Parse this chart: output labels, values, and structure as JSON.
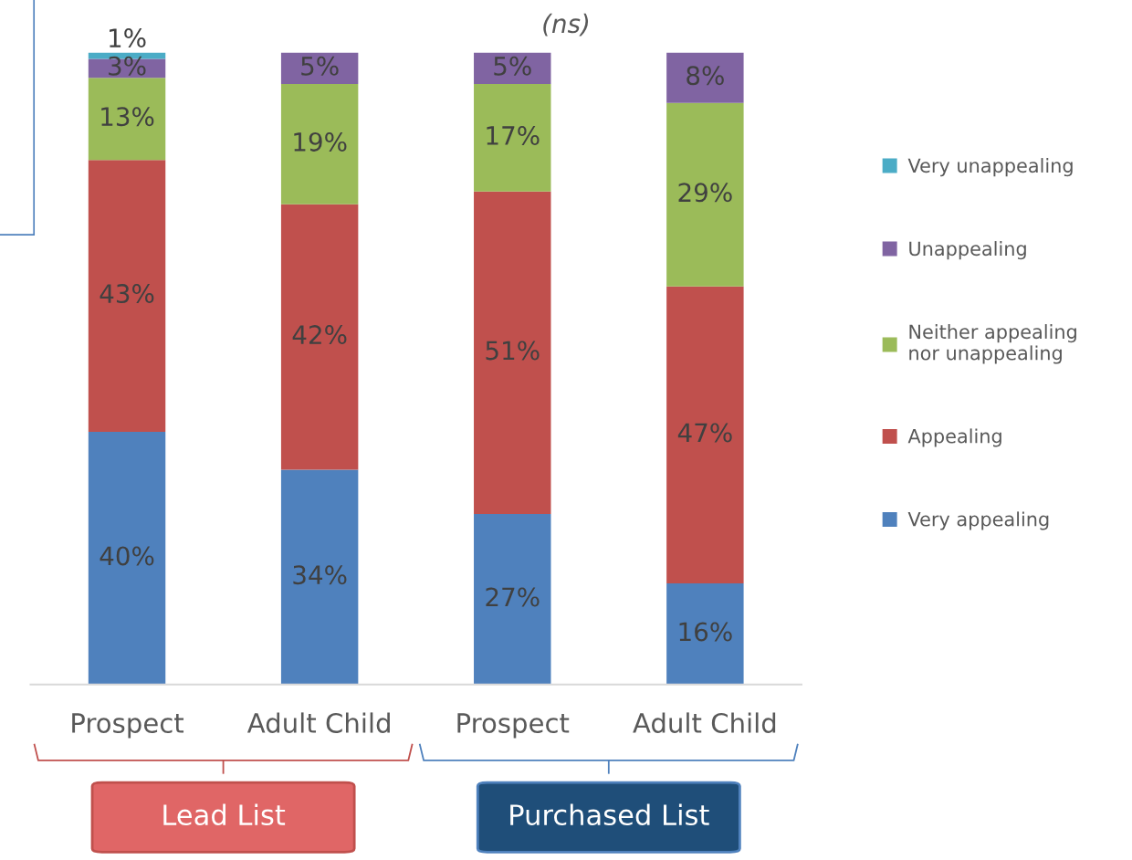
{
  "chart_data": {
    "type": "bar",
    "stacked": true,
    "subtitle": "(ns)",
    "categories": [
      "Prospect",
      "Adult Child",
      "Prospect",
      "Adult Child"
    ],
    "series": [
      {
        "name": "Very appealing",
        "color": "#4f81bd",
        "values": [
          40,
          34,
          27,
          16
        ],
        "value_labels": [
          "40%",
          "34%",
          "27%",
          "16%"
        ]
      },
      {
        "name": "Appealing",
        "color": "#c0504d",
        "values": [
          43,
          42,
          51,
          47
        ],
        "value_labels": [
          "43%",
          "42%",
          "51%",
          "47%"
        ]
      },
      {
        "name": "Neither appealing\nnor unappealing",
        "color": "#9bbb59",
        "values": [
          13,
          19,
          17,
          29
        ],
        "value_labels": [
          "13%",
          "19%",
          "17%",
          "29%"
        ]
      },
      {
        "name": "Unappealing",
        "color": "#8064a2",
        "values": [
          3,
          5,
          5,
          8
        ],
        "value_labels": [
          "3%",
          "5%",
          "5%",
          "8%"
        ]
      },
      {
        "name": "Very unappealing",
        "color": "#4bacc6",
        "values": [
          1,
          null,
          null,
          null
        ],
        "value_labels": [
          "1%",
          null,
          null,
          null
        ]
      }
    ],
    "annotations": [
      "Lead List",
      "Purchased List"
    ],
    "legend": "right",
    "grid": false
  }
}
